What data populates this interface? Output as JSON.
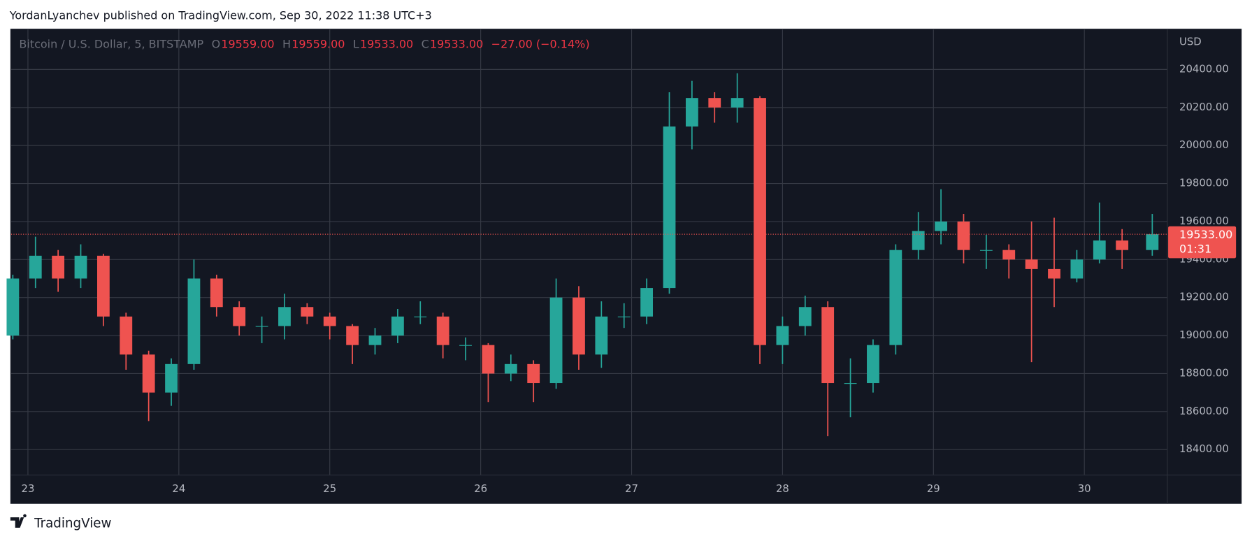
{
  "header": {
    "byline": "YordanLyanchev published on TradingView.com, Sep 30, 2022 11:38 UTC+3"
  },
  "footer": {
    "brand": "TradingView"
  },
  "chart_data": {
    "type": "candlestick",
    "symbol": "Bitcoin / U.S. Dollar, 5, BITSTAMP",
    "legend": {
      "o_key": "O",
      "o": "19559.00",
      "h_key": "H",
      "h": "19559.00",
      "l_key": "L",
      "l": "19533.00",
      "c_key": "C",
      "c": "19533.00",
      "change": "−27.00 (−0.14%)"
    },
    "y_unit": "USD",
    "up_color": "#26a69a",
    "down_color": "#ef5350",
    "x": [
      22.9,
      23.05,
      23.2,
      23.35,
      23.5,
      23.65,
      23.8,
      23.95,
      24.1,
      24.25,
      24.4,
      24.55,
      24.7,
      24.85,
      25.0,
      25.15,
      25.3,
      25.45,
      25.6,
      25.75,
      25.9,
      26.05,
      26.2,
      26.35,
      26.5,
      26.65,
      26.8,
      26.95,
      27.1,
      27.25,
      27.4,
      27.55,
      27.7,
      27.85,
      28.0,
      28.15,
      28.3,
      28.45,
      28.6,
      28.75,
      28.9,
      29.05,
      29.2,
      29.35,
      29.5,
      29.65,
      29.8,
      29.95,
      30.1,
      30.25,
      30.45
    ],
    "open": [
      19000,
      19300,
      19420,
      19300,
      19420,
      19100,
      18900,
      18700,
      18850,
      19300,
      19150,
      19050,
      19050,
      19150,
      19100,
      19050,
      18950,
      19000,
      19100,
      19100,
      18950,
      18950,
      18800,
      18850,
      18750,
      19200,
      18900,
      19100,
      19100,
      19250,
      20100,
      20250,
      20200,
      20250,
      18950,
      19050,
      19150,
      18750,
      18750,
      18950,
      19450,
      19550,
      19600,
      19450,
      19450,
      19400,
      19350,
      19300,
      19400,
      19500,
      19450
    ],
    "high": [
      19320,
      19520,
      19450,
      19480,
      19430,
      19120,
      18920,
      18880,
      19400,
      19320,
      19180,
      19100,
      19220,
      19170,
      19120,
      19060,
      19040,
      19140,
      19180,
      19120,
      18990,
      18960,
      18900,
      18870,
      19300,
      19260,
      19180,
      19170,
      19300,
      20280,
      20340,
      20280,
      20380,
      20260,
      19100,
      19210,
      19180,
      18880,
      18980,
      19480,
      19650,
      19770,
      19640,
      19530,
      19480,
      19600,
      19620,
      19450,
      19700,
      19560,
      19640
    ],
    "low": [
      18980,
      19250,
      19230,
      19250,
      19050,
      18820,
      18550,
      18630,
      18820,
      19100,
      19000,
      18960,
      18980,
      19060,
      18980,
      18850,
      18900,
      18960,
      19060,
      18880,
      18870,
      18650,
      18760,
      18650,
      18720,
      18820,
      18830,
      19040,
      19060,
      19220,
      19980,
      20120,
      20120,
      18850,
      18850,
      19000,
      18470,
      18570,
      18700,
      18900,
      19400,
      19480,
      19380,
      19350,
      19300,
      18860,
      19150,
      19280,
      19380,
      19350,
      19420
    ],
    "close": [
      19300,
      19420,
      19300,
      19420,
      19100,
      18900,
      18700,
      18850,
      19300,
      19150,
      19050,
      19050,
      19150,
      19100,
      19050,
      18950,
      19000,
      19100,
      19100,
      18950,
      18950,
      18800,
      18850,
      18750,
      19200,
      18900,
      19100,
      19100,
      19250,
      20100,
      20250,
      20200,
      20250,
      18950,
      19050,
      19150,
      18750,
      18750,
      18950,
      19450,
      19550,
      19600,
      19450,
      19450,
      19400,
      19350,
      19300,
      19400,
      19500,
      19450,
      19533
    ],
    "last_price": {
      "value": 19533,
      "label": "19533.00"
    },
    "countdown": "01:31",
    "xlim": [
      22.889,
      30.55
    ],
    "xticks": [
      23,
      24,
      25,
      26,
      27,
      28,
      29,
      30
    ],
    "ylim": [
      18266,
      20610
    ],
    "yticks": [
      {
        "value": 18400,
        "label": "18400.00"
      },
      {
        "value": 18600,
        "label": "18600.00"
      },
      {
        "value": 18800,
        "label": "18800.00"
      },
      {
        "value": 19000,
        "label": "19000.00"
      },
      {
        "value": 19200,
        "label": "19200.00"
      },
      {
        "value": 19400,
        "label": "19400.00"
      },
      {
        "value": 19600,
        "label": "19600.00"
      },
      {
        "value": 19800,
        "label": "19800.00"
      },
      {
        "value": 20000,
        "label": "20000.00"
      },
      {
        "value": 20200,
        "label": "20200.00"
      },
      {
        "value": 20400,
        "label": "20400.00"
      }
    ],
    "grid": true
  }
}
